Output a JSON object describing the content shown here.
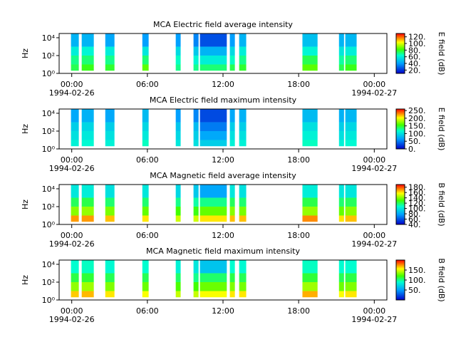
{
  "chart_data": [
    {
      "type": "spectrogram",
      "title": "MCA  Electric field average intensity",
      "ylabel": "Hz",
      "zlabel": "E field (dB)",
      "start_date": "1994-02-26",
      "end_date": "1994-02-27",
      "xlim": [
        -1,
        25
      ],
      "xticks": [
        {
          "value": 0,
          "label": "00:00"
        },
        {
          "value": 6,
          "label": "06:00"
        },
        {
          "value": 12,
          "label": "12:00"
        },
        {
          "value": 18,
          "label": "18:00"
        },
        {
          "value": 24,
          "label": "00:00"
        }
      ],
      "ylog": true,
      "ylim": [
        1,
        30000
      ],
      "yticks": [
        {
          "value": 1,
          "label": "10⁰"
        },
        {
          "value": 100,
          "label": "10²"
        },
        {
          "value": 10000,
          "label": "10⁴"
        }
      ],
      "segments": [
        [
          -0.06,
          0.56
        ],
        [
          0.79,
          1.75
        ],
        [
          2.66,
          3.39
        ],
        [
          5.6,
          6.1
        ],
        [
          8.25,
          8.64
        ],
        [
          9.66,
          10.06
        ],
        [
          10.17,
          12.3
        ],
        [
          12.54,
          12.94
        ],
        [
          13.28,
          13.84
        ],
        [
          18.3,
          19.5
        ],
        [
          21.2,
          21.6
        ],
        [
          21.7,
          22.6
        ]
      ],
      "bands": [
        2,
        10,
        100,
        1000,
        30000
      ],
      "z": [
        [
          75,
          70,
          60,
          45
        ],
        [
          80,
          72,
          62,
          45
        ],
        [
          78,
          70,
          60,
          42
        ],
        [
          85,
          72,
          58,
          40
        ],
        [
          70,
          65,
          55,
          40
        ],
        [
          70,
          62,
          50,
          35
        ],
        [
          72,
          60,
          45,
          25
        ],
        [
          75,
          65,
          55,
          40
        ],
        [
          78,
          70,
          60,
          45
        ],
        [
          85,
          75,
          62,
          48
        ],
        [
          75,
          68,
          58,
          45
        ],
        [
          80,
          72,
          60,
          46
        ]
      ],
      "zlim": [
        10,
        130
      ],
      "zticks": [
        {
          "value": 20,
          "label": "20."
        },
        {
          "value": 40,
          "label": "40."
        },
        {
          "value": 60,
          "label": "60."
        },
        {
          "value": 80,
          "label": "80."
        },
        {
          "value": 100,
          "label": "100."
        },
        {
          "value": 120,
          "label": "120."
        }
      ]
    },
    {
      "type": "spectrogram",
      "title": "MCA  Electric field maximum intensity",
      "ylabel": "Hz",
      "zlabel": "E field (dB)",
      "start_date": "1994-02-26",
      "end_date": "1994-02-27",
      "xlim": [
        -1,
        25
      ],
      "xticks": [
        {
          "value": 0,
          "label": "00:00"
        },
        {
          "value": 6,
          "label": "06:00"
        },
        {
          "value": 12,
          "label": "12:00"
        },
        {
          "value": 18,
          "label": "18:00"
        },
        {
          "value": 24,
          "label": "00:00"
        }
      ],
      "ylog": true,
      "ylim": [
        1,
        30000
      ],
      "yticks": [
        {
          "value": 1,
          "label": "10⁰"
        },
        {
          "value": 100,
          "label": "10²"
        },
        {
          "value": 10000,
          "label": "10⁴"
        }
      ],
      "segments": [
        [
          -0.06,
          0.56
        ],
        [
          0.79,
          1.75
        ],
        [
          2.66,
          3.39
        ],
        [
          5.6,
          6.1
        ],
        [
          8.25,
          8.64
        ],
        [
          9.66,
          10.06
        ],
        [
          10.17,
          12.3
        ],
        [
          12.54,
          12.94
        ],
        [
          13.28,
          13.84
        ],
        [
          18.3,
          19.5
        ],
        [
          21.2,
          21.6
        ],
        [
          21.7,
          22.6
        ]
      ],
      "bands": [
        2,
        10,
        100,
        1000,
        30000
      ],
      "z": [
        [
          110,
          100,
          90,
          70
        ],
        [
          115,
          105,
          95,
          75
        ],
        [
          110,
          100,
          90,
          70
        ],
        [
          120,
          105,
          95,
          80
        ],
        [
          105,
          95,
          85,
          65
        ],
        [
          100,
          90,
          80,
          55
        ],
        [
          90,
          70,
          50,
          30
        ],
        [
          110,
          100,
          90,
          70
        ],
        [
          110,
          100,
          90,
          75
        ],
        [
          120,
          110,
          100,
          80
        ],
        [
          110,
          100,
          90,
          75
        ],
        [
          115,
          105,
          95,
          78
        ]
      ],
      "zlim": [
        0,
        260
      ],
      "zticks": [
        {
          "value": 0,
          "label": "0."
        },
        {
          "value": 50,
          "label": "50."
        },
        {
          "value": 100,
          "label": "100."
        },
        {
          "value": 150,
          "label": "150."
        },
        {
          "value": 200,
          "label": "200."
        },
        {
          "value": 250,
          "label": "250."
        }
      ]
    },
    {
      "type": "spectrogram",
      "title": "MCA  Magnetic field average intensity",
      "ylabel": "Hz",
      "zlabel": "B field (dB)",
      "start_date": "1994-02-26",
      "end_date": "1994-02-27",
      "xlim": [
        -1,
        25
      ],
      "xticks": [
        {
          "value": 0,
          "label": "00:00"
        },
        {
          "value": 6,
          "label": "06:00"
        },
        {
          "value": 12,
          "label": "12:00"
        },
        {
          "value": 18,
          "label": "18:00"
        },
        {
          "value": 24,
          "label": "00:00"
        }
      ],
      "ylog": true,
      "ylim": [
        1,
        30000
      ],
      "yticks": [
        {
          "value": 1,
          "label": "10⁰"
        },
        {
          "value": 100,
          "label": "10²"
        },
        {
          "value": 10000,
          "label": "10⁴"
        }
      ],
      "segments": [
        [
          -0.06,
          0.56
        ],
        [
          0.79,
          1.75
        ],
        [
          2.66,
          3.39
        ],
        [
          5.6,
          6.1
        ],
        [
          8.25,
          8.64
        ],
        [
          9.66,
          10.06
        ],
        [
          10.17,
          12.3
        ],
        [
          12.54,
          12.94
        ],
        [
          13.28,
          13.84
        ],
        [
          18.3,
          19.5
        ],
        [
          21.2,
          21.6
        ],
        [
          21.7,
          22.6
        ]
      ],
      "bands": [
        2,
        10,
        100,
        1000,
        30000
      ],
      "z": [
        [
          170,
          140,
          120,
          100
        ],
        [
          170,
          142,
          122,
          102
        ],
        [
          165,
          138,
          118,
          98
        ],
        [
          160,
          135,
          118,
          100
        ],
        [
          150,
          130,
          115,
          95
        ],
        [
          150,
          128,
          112,
          90
        ],
        [
          160,
          135,
          115,
          80
        ],
        [
          165,
          140,
          120,
          100
        ],
        [
          165,
          138,
          118,
          98
        ],
        [
          172,
          142,
          122,
          102
        ],
        [
          160,
          135,
          118,
          100
        ],
        [
          165,
          140,
          120,
          100
        ]
      ],
      "zlim": [
        40,
        190
      ],
      "zticks": [
        {
          "value": 40,
          "label": "40."
        },
        {
          "value": 60,
          "label": "60."
        },
        {
          "value": 80,
          "label": "80."
        },
        {
          "value": 100,
          "label": "100."
        },
        {
          "value": 120,
          "label": "120."
        },
        {
          "value": 140,
          "label": "140."
        },
        {
          "value": 160,
          "label": "160."
        },
        {
          "value": 180,
          "label": "180."
        }
      ]
    },
    {
      "type": "spectrogram",
      "title": "MCA  Magnetic field maximum intensity",
      "ylabel": "Hz",
      "zlabel": "B field (dB)",
      "start_date": "1994-02-26",
      "end_date": "1994-02-27",
      "xlim": [
        -1,
        25
      ],
      "xticks": [
        {
          "value": 0,
          "label": "00:00"
        },
        {
          "value": 6,
          "label": "06:00"
        },
        {
          "value": 12,
          "label": "12:00"
        },
        {
          "value": 18,
          "label": "18:00"
        },
        {
          "value": 24,
          "label": "00:00"
        }
      ],
      "ylog": true,
      "ylim": [
        1,
        30000
      ],
      "yticks": [
        {
          "value": 1,
          "label": "10⁰"
        },
        {
          "value": 100,
          "label": "10²"
        },
        {
          "value": 10000,
          "label": "10⁴"
        }
      ],
      "segments": [
        [
          -0.06,
          0.56
        ],
        [
          0.79,
          1.75
        ],
        [
          2.66,
          3.39
        ],
        [
          5.6,
          6.1
        ],
        [
          8.25,
          8.64
        ],
        [
          9.66,
          10.06
        ],
        [
          10.17,
          12.3
        ],
        [
          12.54,
          12.94
        ],
        [
          13.28,
          13.84
        ],
        [
          18.3,
          19.5
        ],
        [
          21.2,
          21.6
        ],
        [
          21.7,
          22.6
        ]
      ],
      "bands": [
        2,
        10,
        100,
        1000,
        30000
      ],
      "z": [
        [
          165,
          135,
          110,
          90
        ],
        [
          168,
          138,
          112,
          92
        ],
        [
          160,
          132,
          108,
          88
        ],
        [
          155,
          128,
          108,
          90
        ],
        [
          145,
          122,
          105,
          85
        ],
        [
          145,
          120,
          100,
          80
        ],
        [
          155,
          128,
          105,
          65
        ],
        [
          160,
          132,
          110,
          90
        ],
        [
          160,
          130,
          108,
          88
        ],
        [
          170,
          138,
          112,
          92
        ],
        [
          155,
          128,
          108,
          90
        ],
        [
          160,
          132,
          110,
          90
        ]
      ],
      "zlim": [
        0,
        200
      ],
      "zticks": [
        {
          "value": 50,
          "label": "50."
        },
        {
          "value": 100,
          "label": "100."
        },
        {
          "value": 150,
          "label": "150."
        }
      ]
    }
  ]
}
